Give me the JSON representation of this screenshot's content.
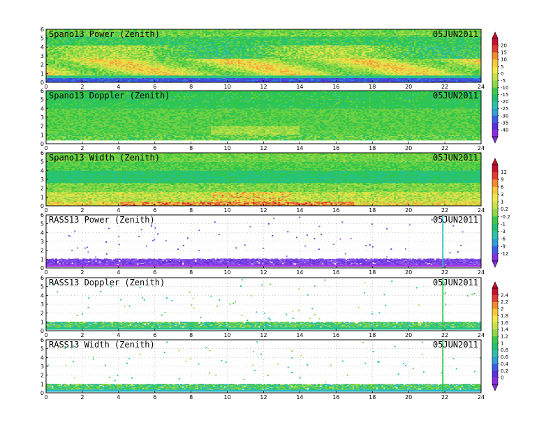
{
  "chart_data": [
    {
      "type": "heatmap",
      "title": "Spano13 Power (Zenith)",
      "date": "05JUN2011",
      "xlim": [
        0,
        24
      ],
      "ylim": [
        0,
        6
      ],
      "x_ticks": [
        0,
        2,
        4,
        6,
        8,
        10,
        12,
        14,
        16,
        18,
        20,
        22,
        24
      ],
      "y_ticks": [
        0,
        1,
        2,
        3,
        4,
        5,
        6
      ],
      "pattern": "power",
      "colorbar": "A"
    },
    {
      "type": "heatmap",
      "title": "Spano13 Doppler (Zenith)",
      "date": "05JUN2011",
      "xlim": [
        0,
        24
      ],
      "ylim": [
        0,
        6
      ],
      "x_ticks": [
        0,
        2,
        4,
        6,
        8,
        10,
        12,
        14,
        16,
        18,
        20,
        22,
        24
      ],
      "y_ticks": [
        0,
        1,
        2,
        3,
        4,
        5,
        6
      ],
      "pattern": "doppler",
      "colorbar": "A"
    },
    {
      "type": "heatmap",
      "title": "Spano13 Width (Zenith)",
      "date": "05JUN2011",
      "xlim": [
        0,
        24
      ],
      "ylim": [
        0,
        6
      ],
      "x_ticks": [
        0,
        2,
        4,
        6,
        8,
        10,
        12,
        14,
        16,
        18,
        20,
        22,
        24
      ],
      "y_ticks": [
        0,
        1,
        2,
        3,
        4,
        5,
        6
      ],
      "pattern": "width",
      "colorbar": "B"
    },
    {
      "type": "heatmap",
      "title": "RASS13 Power (Zenith)",
      "date": "05JUN2011",
      "xlim": [
        0,
        24
      ],
      "ylim": [
        0,
        6
      ],
      "x_ticks": [
        0,
        2,
        4,
        6,
        8,
        10,
        12,
        14,
        16,
        18,
        20,
        22,
        24
      ],
      "y_ticks": [
        0,
        1,
        2,
        3,
        4,
        5,
        6
      ],
      "pattern": "rass_power",
      "colorbar": "B"
    },
    {
      "type": "heatmap",
      "title": "RASS13 Doppler (Zenith)",
      "date": "05JUN2011",
      "xlim": [
        0,
        24
      ],
      "ylim": [
        0,
        6
      ],
      "x_ticks": [
        0,
        2,
        4,
        6,
        8,
        10,
        12,
        14,
        16,
        18,
        20,
        22,
        24
      ],
      "y_ticks": [
        0,
        1,
        2,
        3,
        4,
        5,
        6
      ],
      "pattern": "rass_doppler",
      "colorbar": "C"
    },
    {
      "type": "heatmap",
      "title": "RASS13 Width (Zenith)",
      "date": "05JUN2011",
      "xlim": [
        0,
        24
      ],
      "ylim": [
        0,
        6
      ],
      "x_ticks": [
        0,
        2,
        4,
        6,
        8,
        10,
        12,
        14,
        16,
        18,
        20,
        22,
        24
      ],
      "y_ticks": [
        0,
        1,
        2,
        3,
        4,
        5,
        6
      ],
      "pattern": "rass_width",
      "colorbar": "C"
    }
  ],
  "colorbars": {
    "A": {
      "labels": [
        "20",
        "15",
        "10",
        "5",
        "0",
        "-5",
        "-10",
        "-15",
        "-20",
        "-25",
        "-30",
        "-35",
        "-40"
      ],
      "colors": [
        "#c8102e",
        "#e03c31",
        "#f28a2e",
        "#f6c83a",
        "#f0e84a",
        "#c8e04a",
        "#8fd64a",
        "#3ec84a",
        "#22c070",
        "#2ec0a8",
        "#2f9fd6",
        "#3c5ee0",
        "#5a2ee0",
        "#8a2ee0"
      ]
    },
    "B": {
      "labels": [
        "12",
        "9",
        "6",
        "3",
        "1",
        "0.2",
        "-0.2",
        "-1",
        "-3",
        "-6",
        "-9",
        "-12"
      ],
      "colors": [
        "#c8102e",
        "#e03c31",
        "#f28a2e",
        "#f6c83a",
        "#f0e84a",
        "#c8e04a",
        "#8fd64a",
        "#3ec84a",
        "#22c070",
        "#2ec0a8",
        "#2f9fd6",
        "#3c5ee0",
        "#8a2ee0"
      ]
    },
    "C": {
      "labels": [
        "2.4",
        "2.2",
        "2",
        "1.8",
        "1.6",
        "1.4",
        "1.2",
        "1",
        "0.8",
        "0.6",
        "0.4",
        "0.2",
        "0"
      ],
      "colors": [
        "#c8102e",
        "#e03c31",
        "#f28a2e",
        "#f6c83a",
        "#f0e84a",
        "#c8e04a",
        "#8fd64a",
        "#3ec84a",
        "#22c070",
        "#2ec0a8",
        "#2f9fd6",
        "#3c5ee0",
        "#5a2ee0",
        "#8a2ee0"
      ]
    }
  }
}
